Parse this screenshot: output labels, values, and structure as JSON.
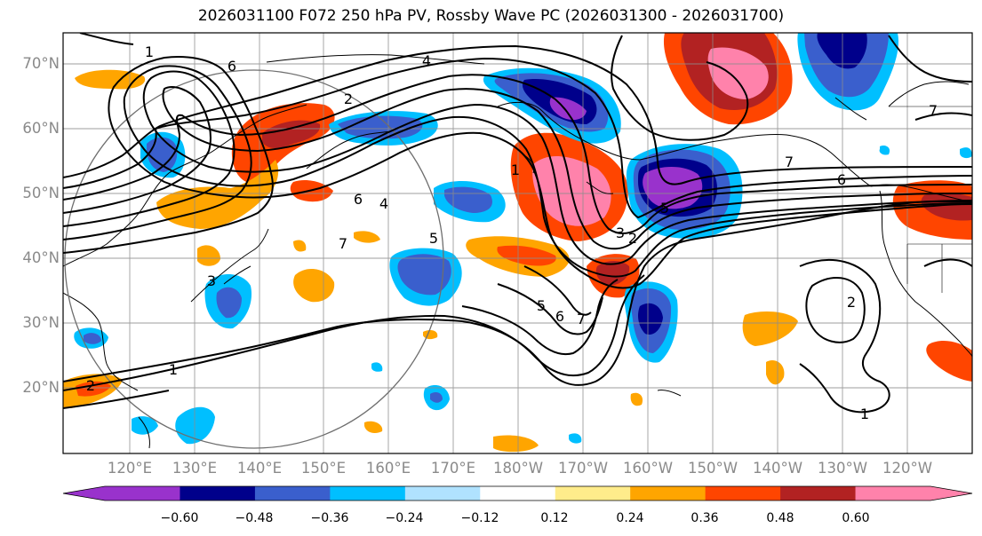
{
  "title": "2026031100 F072 250 hPa PV, Rossby Wave PC (2026031300 - 2026031700)",
  "lat_labels": [
    "70°N",
    "60°N",
    "50°N",
    "40°N",
    "30°N",
    "20°N"
  ],
  "lon_labels": [
    "120°E",
    "130°E",
    "140°E",
    "150°E",
    "160°E",
    "170°E",
    "180°W",
    "170°W",
    "160°W",
    "150°W",
    "140°W",
    "130°W",
    "120°W"
  ],
  "colorbar": {
    "tick_labels": [
      "−0.60",
      "−0.48",
      "−0.36",
      "−0.24",
      "−0.12",
      "0.12",
      "0.24",
      "0.36",
      "0.48",
      "0.60"
    ],
    "colors": [
      "#9932cc",
      "#00008b",
      "#3a5fcd",
      "#00bfff",
      "#b0e2ff",
      "#ffffff",
      "#ffec8b",
      "#ffa500",
      "#ff4500",
      "#b22222",
      "#ff82ab"
    ]
  },
  "contour_labels": [
    "1",
    "6",
    "4",
    "2",
    "7",
    "6",
    "5",
    "7",
    "3",
    "2",
    "5",
    "6",
    "7",
    "1",
    "2",
    "1",
    "7",
    "6",
    "2",
    "1",
    "5",
    "3",
    "4"
  ],
  "pc_colors": {
    "purple": "#9932cc",
    "navy": "#00008b",
    "royal": "#3a5fcd",
    "sky": "#00bfff",
    "pale_blue": "#b0e2ff",
    "pale_yellow": "#ffec8b",
    "orange": "#ffa500",
    "red_orange": "#ff4500",
    "firebrick": "#b22222",
    "pink": "#ff82ab"
  }
}
